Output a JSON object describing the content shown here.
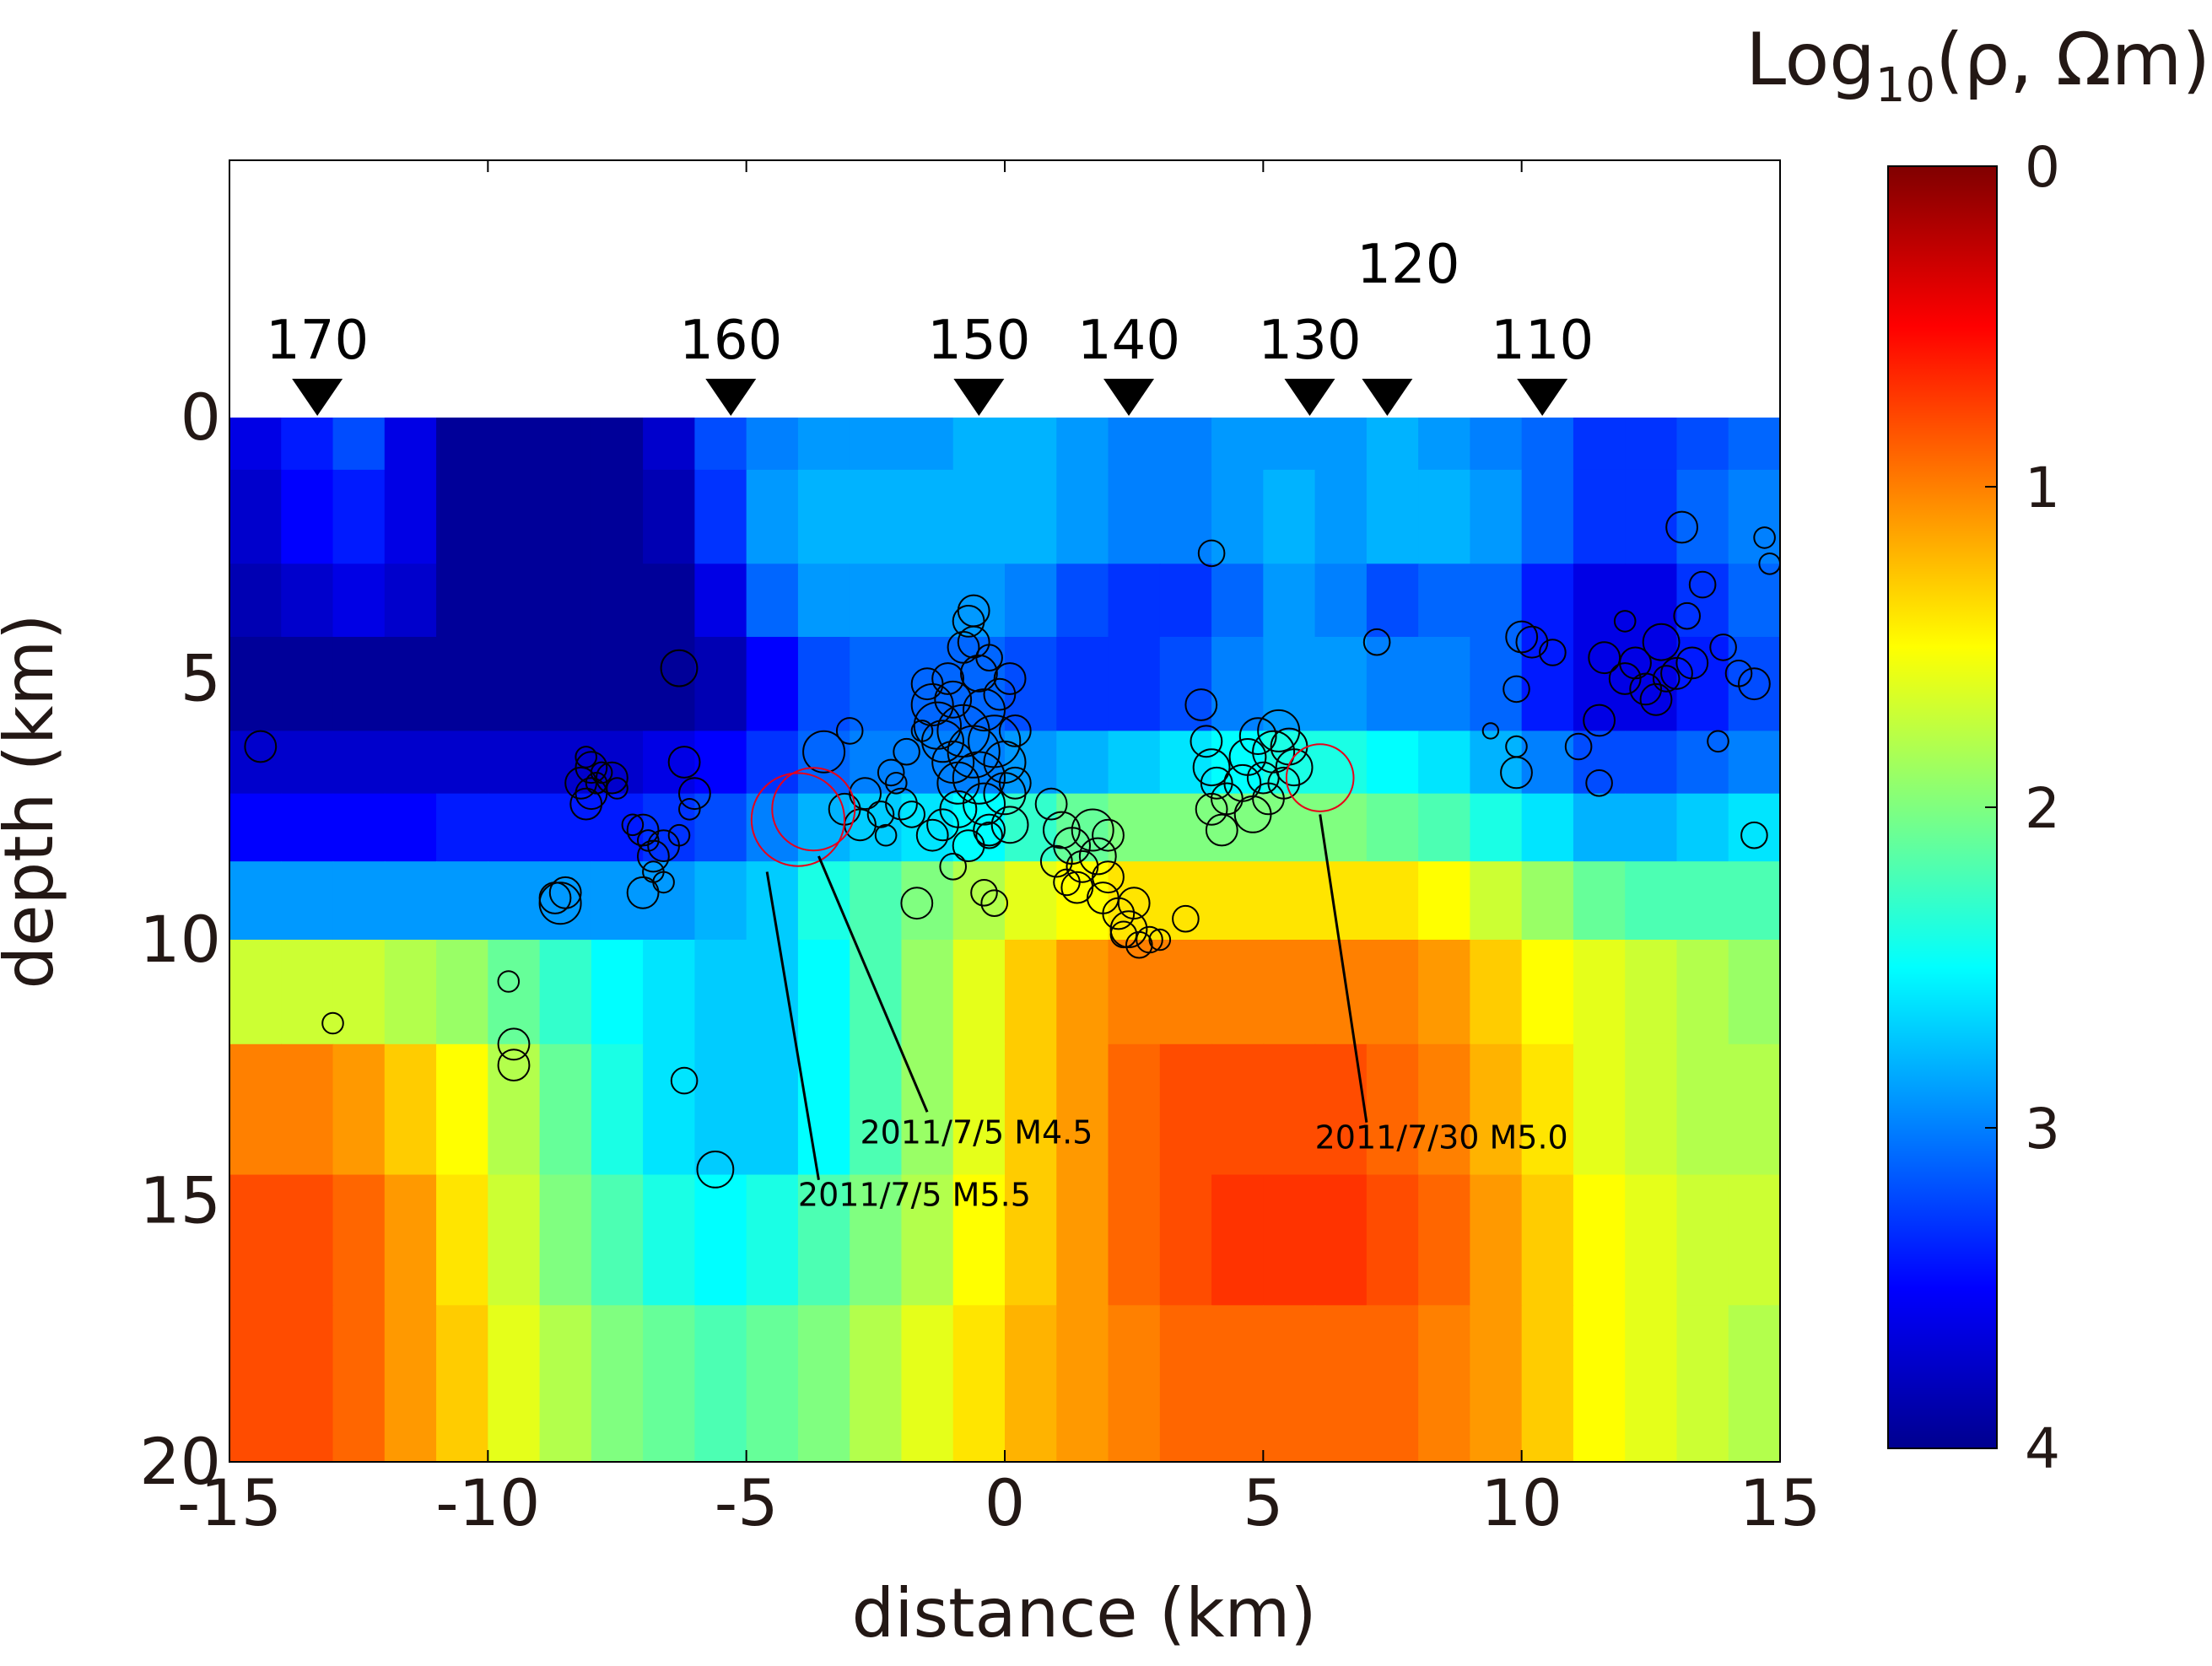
{
  "chart_data": {
    "type": "heatmap",
    "title": "",
    "xlabel": "distance (km)",
    "ylabel": "depth (km)",
    "xlim": [
      -15,
      15
    ],
    "ylim": [
      20,
      -5
    ],
    "x_ticks": [
      "-15",
      "-10",
      "-5",
      "0",
      "5",
      "10",
      "15"
    ],
    "y_ticks": [
      "0",
      "5",
      "10",
      "15",
      "20"
    ],
    "colorbar": {
      "label_main": "Log",
      "label_sub": "10",
      "label_tail": "(ρ, Ωm)",
      "colormap": "jet",
      "range": [
        0,
        4
      ],
      "ticks": [
        "0",
        "1",
        "2",
        "3",
        "4"
      ]
    },
    "stations": [
      {
        "label": "170",
        "x": -13.3
      },
      {
        "label": "160",
        "x": -5.3
      },
      {
        "label": "150",
        "x": -0.5
      },
      {
        "label": "140",
        "x": 2.4
      },
      {
        "label": "130",
        "x": 5.9
      },
      {
        "label": "120",
        "x": 7.4
      },
      {
        "label": "110",
        "x": 10.4
      }
    ],
    "layers": [
      {
        "top": 0,
        "bottom": 1,
        "values": [
          3.6,
          3.4,
          3.2,
          3.6,
          3.9,
          3.9,
          3.9,
          3.9,
          3.7,
          3.2,
          3.0,
          2.9,
          2.9,
          2.9,
          2.8,
          2.8,
          2.9,
          3.0,
          3.0,
          2.9,
          2.9,
          2.9,
          2.8,
          2.9,
          3.0,
          3.1,
          3.3,
          3.3,
          3.2,
          3.1
        ]
      },
      {
        "top": 1,
        "bottom": 2.8,
        "values": [
          3.7,
          3.5,
          3.4,
          3.6,
          3.9,
          3.9,
          3.9,
          3.9,
          3.8,
          3.3,
          2.9,
          2.8,
          2.8,
          2.8,
          2.8,
          2.8,
          2.9,
          3.0,
          3.0,
          2.9,
          2.8,
          2.9,
          2.8,
          2.8,
          2.9,
          3.1,
          3.3,
          3.3,
          3.1,
          3.0
        ]
      },
      {
        "top": 2.8,
        "bottom": 4.2,
        "values": [
          3.8,
          3.7,
          3.6,
          3.7,
          3.9,
          3.9,
          3.9,
          3.9,
          3.9,
          3.6,
          3.1,
          2.9,
          2.9,
          2.9,
          2.9,
          3.0,
          3.2,
          3.3,
          3.3,
          3.1,
          2.9,
          3.0,
          3.2,
          3.1,
          3.1,
          3.4,
          3.6,
          3.6,
          3.3,
          3.1
        ]
      },
      {
        "top": 4.2,
        "bottom": 6,
        "values": [
          3.9,
          3.9,
          3.9,
          3.9,
          3.9,
          3.9,
          3.9,
          3.9,
          3.9,
          3.8,
          3.5,
          3.2,
          3.1,
          3.1,
          3.1,
          3.2,
          3.3,
          3.3,
          3.2,
          3.0,
          2.9,
          2.9,
          3.0,
          3.0,
          3.1,
          3.4,
          3.6,
          3.6,
          3.4,
          3.2
        ]
      },
      {
        "top": 6,
        "bottom": 7.2,
        "values": [
          3.7,
          3.7,
          3.7,
          3.7,
          3.7,
          3.7,
          3.7,
          3.7,
          3.6,
          3.5,
          3.3,
          3.1,
          3.0,
          3.0,
          3.0,
          2.9,
          2.8,
          2.7,
          2.6,
          2.5,
          2.4,
          2.4,
          2.5,
          2.6,
          2.8,
          3.0,
          3.2,
          3.2,
          3.1,
          3.0
        ]
      },
      {
        "top": 7.2,
        "bottom": 8.5,
        "values": [
          3.5,
          3.5,
          3.5,
          3.5,
          3.4,
          3.4,
          3.4,
          3.4,
          3.3,
          3.2,
          3.0,
          2.8,
          2.7,
          2.6,
          2.5,
          2.3,
          2.1,
          2.0,
          2.0,
          2.0,
          2.0,
          2.0,
          2.1,
          2.2,
          2.4,
          2.6,
          2.8,
          2.8,
          2.7,
          2.6
        ]
      },
      {
        "top": 8.5,
        "bottom": 10,
        "values": [
          2.9,
          2.9,
          2.9,
          2.9,
          2.9,
          2.9,
          2.9,
          2.9,
          2.9,
          2.8,
          2.7,
          2.4,
          2.2,
          2.0,
          1.8,
          1.6,
          1.5,
          1.4,
          1.4,
          1.4,
          1.4,
          1.4,
          1.4,
          1.5,
          1.7,
          1.9,
          2.1,
          2.2,
          2.2,
          2.2
        ]
      },
      {
        "top": 10,
        "bottom": 12,
        "values": [
          1.7,
          1.7,
          1.7,
          1.8,
          1.9,
          2.1,
          2.3,
          2.5,
          2.6,
          2.7,
          2.7,
          2.5,
          2.2,
          1.9,
          1.6,
          1.3,
          1.1,
          1.0,
          1.0,
          1.0,
          1.0,
          1.0,
          1.0,
          1.1,
          1.3,
          1.5,
          1.6,
          1.7,
          1.8,
          1.9
        ]
      },
      {
        "top": 12,
        "bottom": 14.5,
        "values": [
          1.0,
          1.0,
          1.1,
          1.3,
          1.5,
          1.8,
          2.1,
          2.4,
          2.6,
          2.7,
          2.7,
          2.5,
          2.2,
          1.9,
          1.6,
          1.3,
          1.1,
          0.9,
          0.8,
          0.8,
          0.8,
          0.8,
          0.9,
          1.0,
          1.2,
          1.4,
          1.6,
          1.7,
          1.8,
          1.8
        ]
      },
      {
        "top": 14.5,
        "bottom": 17,
        "values": [
          0.8,
          0.8,
          0.9,
          1.1,
          1.4,
          1.7,
          2.0,
          2.2,
          2.4,
          2.5,
          2.4,
          2.2,
          2.0,
          1.8,
          1.5,
          1.3,
          1.1,
          0.9,
          0.8,
          0.7,
          0.7,
          0.7,
          0.8,
          0.9,
          1.1,
          1.3,
          1.5,
          1.6,
          1.7,
          1.7
        ]
      },
      {
        "top": 17,
        "bottom": 20,
        "values": [
          0.8,
          0.8,
          0.9,
          1.1,
          1.3,
          1.6,
          1.8,
          2.0,
          2.1,
          2.2,
          2.1,
          2.0,
          1.8,
          1.6,
          1.4,
          1.2,
          1.1,
          1.0,
          0.9,
          0.9,
          0.9,
          0.9,
          0.9,
          1.0,
          1.1,
          1.3,
          1.5,
          1.6,
          1.7,
          1.8
        ]
      }
    ],
    "earthquakes": [
      [
        -14.4,
        6.3,
        0.3
      ],
      [
        -13.0,
        11.6,
        0.2
      ],
      [
        -9.6,
        10.8,
        0.2
      ],
      [
        -9.5,
        12.0,
        0.3
      ],
      [
        -9.5,
        12.4,
        0.3
      ],
      [
        -8.7,
        9.2,
        0.3
      ],
      [
        -8.6,
        9.3,
        0.4
      ],
      [
        -8.5,
        9.1,
        0.3
      ],
      [
        -8.1,
        6.5,
        0.2
      ],
      [
        -8.0,
        6.7,
        0.3
      ],
      [
        -8.2,
        7.0,
        0.3
      ],
      [
        -8.0,
        7.2,
        0.3
      ],
      [
        -8.1,
        7.4,
        0.3
      ],
      [
        -7.8,
        6.8,
        0.2
      ],
      [
        -7.6,
        6.9,
        0.3
      ],
      [
        -7.5,
        7.1,
        0.2
      ],
      [
        -7.9,
        7.0,
        0.2
      ],
      [
        -7.2,
        7.8,
        0.2
      ],
      [
        -7.0,
        7.9,
        0.3
      ],
      [
        -6.9,
        8.1,
        0.2
      ],
      [
        -6.8,
        8.4,
        0.3
      ],
      [
        -6.6,
        8.2,
        0.3
      ],
      [
        -6.8,
        8.7,
        0.2
      ],
      [
        -7.0,
        9.1,
        0.3
      ],
      [
        -6.6,
        8.9,
        0.2
      ],
      [
        -6.3,
        8.0,
        0.2
      ],
      [
        -6.2,
        6.6,
        0.3
      ],
      [
        -6.0,
        7.2,
        0.3
      ],
      [
        -6.1,
        7.5,
        0.2
      ],
      [
        -6.3,
        4.8,
        0.35
      ],
      [
        -6.2,
        12.7,
        0.25
      ],
      [
        -5.6,
        14.4,
        0.35
      ],
      [
        -3.5,
        6.4,
        0.4
      ],
      [
        -3.1,
        7.5,
        0.3
      ],
      [
        -3.0,
        6.0,
        0.25
      ],
      [
        -2.7,
        7.2,
        0.3
      ],
      [
        -2.8,
        7.8,
        0.3
      ],
      [
        -2.4,
        7.6,
        0.25
      ],
      [
        -2.2,
        6.8,
        0.25
      ],
      [
        -2.0,
        7.4,
        0.3
      ],
      [
        -1.9,
        6.4,
        0.25
      ],
      [
        -2.1,
        7.0,
        0.2
      ],
      [
        -1.8,
        7.6,
        0.25
      ],
      [
        -1.6,
        6.0,
        0.2
      ],
      [
        -2.3,
        8.0,
        0.2
      ],
      [
        -1.7,
        9.3,
        0.3
      ],
      [
        -1.5,
        5.1,
        0.3
      ],
      [
        -1.4,
        5.5,
        0.4
      ],
      [
        -1.3,
        5.9,
        0.45
      ],
      [
        -1.2,
        6.2,
        0.4
      ],
      [
        -1.1,
        5.0,
        0.3
      ],
      [
        -1.0,
        6.6,
        0.4
      ],
      [
        -1.0,
        5.4,
        0.35
      ],
      [
        -0.9,
        7.0,
        0.4
      ],
      [
        -0.9,
        7.5,
        0.35
      ],
      [
        -0.8,
        6.0,
        0.5
      ],
      [
        -0.8,
        4.4,
        0.3
      ],
      [
        -0.7,
        3.9,
        0.3
      ],
      [
        -0.6,
        3.7,
        0.3
      ],
      [
        -0.6,
        4.3,
        0.3
      ],
      [
        -0.5,
        4.9,
        0.35
      ],
      [
        -0.4,
        5.6,
        0.4
      ],
      [
        -0.6,
        6.4,
        0.5
      ],
      [
        -0.5,
        6.9,
        0.5
      ],
      [
        -0.4,
        7.4,
        0.4
      ],
      [
        -0.3,
        7.9,
        0.3
      ],
      [
        -0.2,
        6.2,
        0.5
      ],
      [
        -0.1,
        5.3,
        0.3
      ],
      [
        0.0,
        6.6,
        0.4
      ],
      [
        0.0,
        7.2,
        0.4
      ],
      [
        0.1,
        7.8,
        0.35
      ],
      [
        0.1,
        5.0,
        0.3
      ],
      [
        -0.3,
        4.6,
        0.25
      ],
      [
        -0.7,
        8.2,
        0.3
      ],
      [
        -1.0,
        8.6,
        0.25
      ],
      [
        -0.4,
        9.1,
        0.25
      ],
      [
        -0.2,
        9.3,
        0.25
      ],
      [
        0.2,
        6.0,
        0.3
      ],
      [
        0.2,
        7.0,
        0.3
      ],
      [
        -1.4,
        8.0,
        0.3
      ],
      [
        -1.2,
        7.8,
        0.3
      ],
      [
        -0.3,
        8.0,
        0.25
      ],
      [
        0.9,
        7.4,
        0.3
      ],
      [
        1.1,
        7.9,
        0.35
      ],
      [
        1.0,
        8.5,
        0.3
      ],
      [
        1.3,
        8.2,
        0.35
      ],
      [
        1.5,
        8.6,
        0.3
      ],
      [
        1.4,
        9.0,
        0.3
      ],
      [
        1.7,
        7.9,
        0.4
      ],
      [
        1.8,
        8.4,
        0.35
      ],
      [
        1.9,
        9.2,
        0.3
      ],
      [
        2.0,
        8.8,
        0.3
      ],
      [
        2.2,
        9.5,
        0.3
      ],
      [
        2.4,
        9.8,
        0.35
      ],
      [
        2.5,
        9.3,
        0.3
      ],
      [
        2.6,
        10.1,
        0.25
      ],
      [
        2.3,
        9.9,
        0.25
      ],
      [
        2.8,
        10.0,
        0.25
      ],
      [
        3.0,
        10.0,
        0.2
      ],
      [
        3.5,
        9.6,
        0.25
      ],
      [
        2.0,
        8.0,
        0.3
      ],
      [
        1.2,
        8.9,
        0.25
      ],
      [
        3.8,
        5.5,
        0.3
      ],
      [
        3.9,
        6.2,
        0.3
      ],
      [
        4.0,
        6.7,
        0.35
      ],
      [
        4.1,
        7.0,
        0.3
      ],
      [
        4.0,
        7.5,
        0.3
      ],
      [
        4.2,
        7.9,
        0.3
      ],
      [
        4.3,
        7.3,
        0.3
      ],
      [
        4.6,
        7.0,
        0.35
      ],
      [
        4.7,
        6.5,
        0.35
      ],
      [
        4.9,
        6.1,
        0.35
      ],
      [
        5.0,
        6.9,
        0.3
      ],
      [
        5.2,
        6.4,
        0.4
      ],
      [
        5.3,
        6.0,
        0.4
      ],
      [
        5.5,
        6.3,
        0.35
      ],
      [
        5.6,
        6.7,
        0.35
      ],
      [
        4.8,
        7.6,
        0.35
      ],
      [
        5.4,
        7.0,
        0.3
      ],
      [
        5.1,
        7.3,
        0.3
      ],
      [
        4.0,
        2.6,
        0.25
      ],
      [
        7.2,
        4.3,
        0.25
      ],
      [
        9.4,
        6.0,
        0.15
      ],
      [
        9.9,
        6.3,
        0.2
      ],
      [
        9.9,
        6.8,
        0.3
      ],
      [
        9.9,
        5.2,
        0.25
      ],
      [
        10.0,
        4.2,
        0.3
      ],
      [
        10.2,
        4.3,
        0.3
      ],
      [
        10.6,
        4.5,
        0.25
      ],
      [
        11.1,
        6.3,
        0.25
      ],
      [
        11.5,
        7.0,
        0.25
      ],
      [
        11.5,
        5.8,
        0.3
      ],
      [
        11.6,
        4.6,
        0.3
      ],
      [
        12.0,
        5.0,
        0.3
      ],
      [
        12.2,
        4.7,
        0.3
      ],
      [
        12.4,
        5.2,
        0.3
      ],
      [
        12.6,
        5.4,
        0.3
      ],
      [
        12.7,
        4.3,
        0.35
      ],
      [
        12.8,
        5.0,
        0.25
      ],
      [
        13.0,
        4.9,
        0.3
      ],
      [
        13.2,
        3.8,
        0.25
      ],
      [
        13.1,
        2.1,
        0.3
      ],
      [
        13.5,
        3.2,
        0.25
      ],
      [
        13.3,
        4.7,
        0.3
      ],
      [
        13.8,
        6.2,
        0.2
      ],
      [
        13.9,
        4.4,
        0.25
      ],
      [
        14.2,
        4.9,
        0.25
      ],
      [
        14.5,
        5.1,
        0.3
      ],
      [
        14.5,
        8.0,
        0.25
      ],
      [
        14.7,
        2.3,
        0.2
      ],
      [
        14.8,
        2.8,
        0.2
      ],
      [
        12.0,
        3.9,
        0.2
      ]
    ],
    "red_events": [
      [
        -4.0,
        7.7,
        0.9
      ],
      [
        -3.7,
        7.5,
        0.8
      ],
      [
        6.1,
        6.9,
        0.65
      ]
    ],
    "annotations": [
      {
        "text": "2011/7/5 M4.5",
        "x": -2.8,
        "y": 13.9,
        "line_from": [
          -3.6,
          8.4
        ],
        "line_to": [
          -1.5,
          13.3
        ]
      },
      {
        "text": "2011/7/5 M5.5",
        "x": -4.0,
        "y": 15.1,
        "line_from": [
          -4.6,
          8.7
        ],
        "line_to": [
          -3.6,
          14.6
        ]
      },
      {
        "text": "2011/7/30 M5.0",
        "x": 6.0,
        "y": 14.0,
        "line_from": [
          6.1,
          7.6
        ],
        "line_to": [
          7.0,
          13.5
        ]
      }
    ]
  }
}
